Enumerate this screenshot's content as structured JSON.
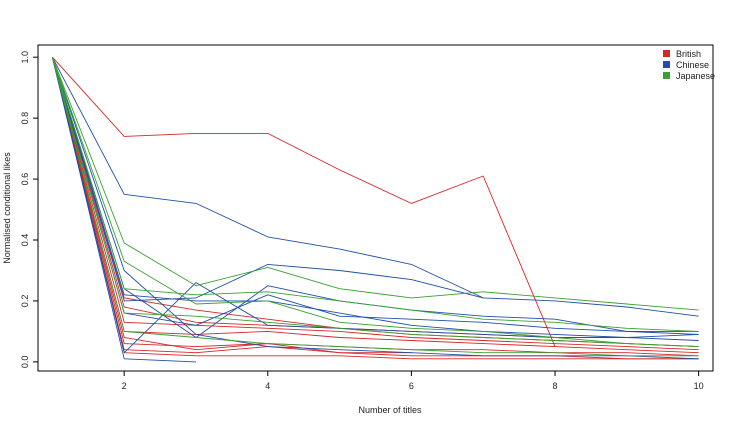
{
  "chart_data": {
    "type": "line",
    "title": "",
    "xlabel": "Number of titles",
    "ylabel": "Normalised conditional likes",
    "xlim": [
      0.8,
      10.2
    ],
    "ylim": [
      -0.03,
      1.04
    ],
    "x_ticks": [
      2,
      4,
      6,
      8,
      10
    ],
    "y_ticks": [
      0.0,
      0.2,
      0.4,
      0.6,
      0.8,
      1.0
    ],
    "y_tick_labels": [
      "0.0",
      "0.2",
      "0.4",
      "0.6",
      "0.8",
      "1.0"
    ],
    "grid": false,
    "legend_position": "top-right",
    "legend": [
      {
        "label": "British",
        "color": "#d62728"
      },
      {
        "label": "Chinese",
        "color": "#1f4fa8"
      },
      {
        "label": "Japanese",
        "color": "#3aa02e"
      }
    ],
    "series": [
      {
        "group": "British",
        "color": "#d62728",
        "x": [
          1,
          2,
          3,
          4,
          5,
          6,
          7,
          8
        ],
        "y": [
          1.0,
          0.74,
          0.75,
          0.75,
          0.63,
          0.52,
          0.61,
          0.05
        ]
      },
      {
        "group": "British",
        "color": "#d62728",
        "x": [
          1,
          2,
          3,
          4,
          5,
          6,
          7,
          8,
          9,
          10
        ],
        "y": [
          1.0,
          0.1,
          0.09,
          0.1,
          0.08,
          0.07,
          0.06,
          0.05,
          0.04,
          0.03
        ]
      },
      {
        "group": "British",
        "color": "#d62728",
        "x": [
          1,
          2,
          3,
          4,
          5,
          6,
          7,
          8,
          9,
          10
        ],
        "y": [
          1.0,
          0.06,
          0.05,
          0.06,
          0.05,
          0.04,
          0.04,
          0.03,
          0.03,
          0.02
        ]
      },
      {
        "group": "British",
        "color": "#d62728",
        "x": [
          1,
          2,
          3,
          4,
          5,
          6,
          7,
          8,
          9,
          10
        ],
        "y": [
          1.0,
          0.13,
          0.12,
          0.11,
          0.1,
          0.08,
          0.07,
          0.06,
          0.05,
          0.04
        ]
      },
      {
        "group": "British",
        "color": "#d62728",
        "x": [
          1,
          2,
          3,
          4,
          5,
          6,
          7,
          8
        ],
        "y": [
          1.0,
          0.18,
          0.13,
          0.12,
          0.11,
          0.1,
          0.09,
          0.08
        ]
      },
      {
        "group": "British",
        "color": "#d62728",
        "x": [
          1,
          2,
          3,
          4,
          5,
          6,
          7,
          8,
          9,
          10
        ],
        "y": [
          1.0,
          0.04,
          0.03,
          0.05,
          0.03,
          0.02,
          0.02,
          0.02,
          0.01,
          0.01
        ]
      },
      {
        "group": "British",
        "color": "#d62728",
        "x": [
          1,
          2,
          3,
          4,
          5,
          6,
          7,
          8,
          9,
          10
        ],
        "y": [
          1.0,
          0.21,
          0.17,
          0.14,
          0.11,
          0.09,
          0.08,
          0.07,
          0.06,
          0.05
        ]
      },
      {
        "group": "British",
        "color": "#d62728",
        "x": [
          1,
          2,
          3,
          4,
          5,
          6
        ],
        "y": [
          1.0,
          0.08,
          0.04,
          0.06,
          0.03,
          0.03
        ]
      },
      {
        "group": "British",
        "color": "#d62728",
        "x": [
          1,
          2,
          3,
          4,
          5,
          6,
          7,
          8,
          9,
          10
        ],
        "y": [
          1.0,
          0.03,
          0.02,
          0.02,
          0.02,
          0.01,
          0.01,
          0.01,
          0.01,
          0.01
        ]
      },
      {
        "group": "Chinese",
        "color": "#1f4fa8",
        "x": [
          1,
          2,
          3,
          4,
          5,
          6,
          7,
          8,
          9,
          10
        ],
        "y": [
          1.0,
          0.55,
          0.52,
          0.41,
          0.37,
          0.32,
          0.21,
          0.2,
          0.18,
          0.15
        ]
      },
      {
        "group": "Chinese",
        "color": "#1f4fa8",
        "x": [
          1,
          2,
          3,
          4,
          5,
          6,
          7
        ],
        "y": [
          1.0,
          0.2,
          0.21,
          0.32,
          0.3,
          0.27,
          0.21
        ]
      },
      {
        "group": "Chinese",
        "color": "#1f4fa8",
        "x": [
          1,
          2,
          3,
          4,
          5,
          6,
          7,
          8,
          9,
          10
        ],
        "y": [
          1.0,
          0.03,
          0.26,
          0.12,
          0.11,
          0.1,
          0.09,
          0.08,
          0.08,
          0.09
        ]
      },
      {
        "group": "Chinese",
        "color": "#1f4fa8",
        "x": [
          1,
          2,
          3,
          4,
          5,
          6,
          7,
          8,
          9,
          10
        ],
        "y": [
          1.0,
          0.24,
          0.08,
          0.25,
          0.2,
          0.17,
          0.15,
          0.14,
          0.1,
          0.09
        ]
      },
      {
        "group": "Chinese",
        "color": "#1f4fa8",
        "x": [
          1,
          2,
          3
        ],
        "y": [
          1.0,
          0.01,
          0.0
        ]
      },
      {
        "group": "Chinese",
        "color": "#1f4fa8",
        "x": [
          1,
          2,
          3,
          4,
          5,
          6,
          7,
          8,
          9,
          10
        ],
        "y": [
          1.0,
          0.22,
          0.2,
          0.2,
          0.16,
          0.12,
          0.1,
          0.09,
          0.08,
          0.07
        ]
      },
      {
        "group": "Chinese",
        "color": "#1f4fa8",
        "x": [
          1,
          2,
          3,
          4,
          5,
          6,
          7,
          8,
          9,
          10
        ],
        "y": [
          1.0,
          0.16,
          0.12,
          0.22,
          0.15,
          0.14,
          0.13,
          0.11,
          0.1,
          0.1
        ]
      },
      {
        "group": "Chinese",
        "color": "#1f4fa8",
        "x": [
          1,
          2,
          3,
          4,
          5,
          6,
          7,
          8,
          9,
          10
        ],
        "y": [
          1.0,
          0.3,
          0.09,
          0.05,
          0.04,
          0.03,
          0.02,
          0.02,
          0.02,
          0.01
        ]
      },
      {
        "group": "Japanese",
        "color": "#3aa02e",
        "x": [
          1,
          2,
          3,
          4,
          5,
          6,
          7,
          8,
          9,
          10
        ],
        "y": [
          1.0,
          0.39,
          0.25,
          0.31,
          0.24,
          0.21,
          0.23,
          0.21,
          0.19,
          0.17
        ]
      },
      {
        "group": "Japanese",
        "color": "#3aa02e",
        "x": [
          1,
          2,
          3,
          4,
          5,
          6,
          7,
          8,
          9,
          10
        ],
        "y": [
          1.0,
          0.24,
          0.22,
          0.23,
          0.2,
          0.17,
          0.14,
          0.13,
          0.11,
          0.1
        ]
      },
      {
        "group": "Japanese",
        "color": "#3aa02e",
        "x": [
          1,
          2,
          3,
          4,
          5,
          6,
          7,
          8,
          9,
          10
        ],
        "y": [
          1.0,
          0.16,
          0.15,
          0.13,
          0.11,
          0.09,
          0.08,
          0.07,
          0.06,
          0.05
        ]
      },
      {
        "group": "Japanese",
        "color": "#3aa02e",
        "x": [
          1,
          2,
          3,
          4,
          5,
          6,
          7,
          8,
          9,
          10
        ],
        "y": [
          1.0,
          0.33,
          0.19,
          0.2,
          0.13,
          0.11,
          0.1,
          0.08,
          0.06,
          0.05
        ]
      },
      {
        "group": "Japanese",
        "color": "#3aa02e",
        "x": [
          1,
          2,
          3,
          4,
          5,
          6,
          7,
          8,
          9,
          10
        ],
        "y": [
          1.0,
          0.1,
          0.08,
          0.06,
          0.05,
          0.04,
          0.03,
          0.03,
          0.02,
          0.02
        ]
      }
    ]
  }
}
